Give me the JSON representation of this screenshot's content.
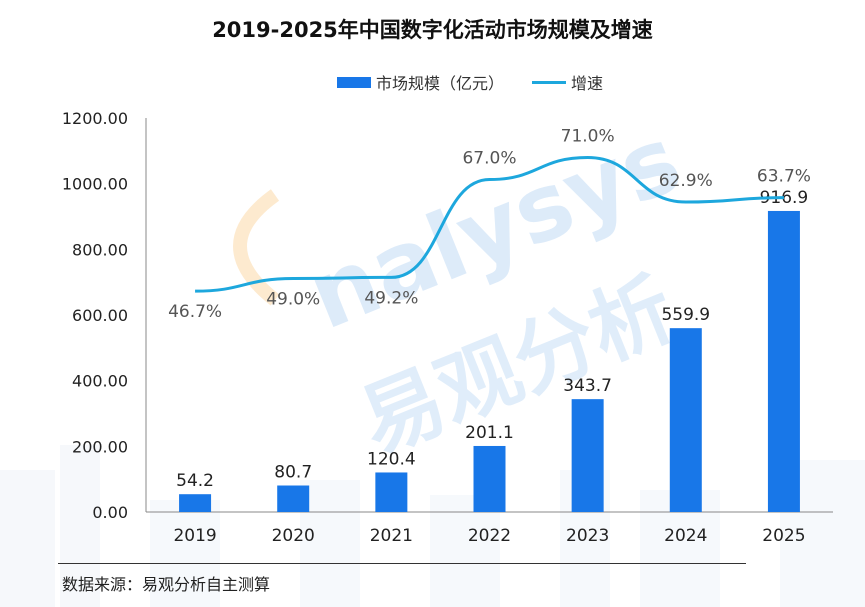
{
  "chart_data": {
    "type": "bar",
    "title": "2019-2025年中国数字化活动市场规模及增速",
    "categories": [
      "2019",
      "2020",
      "2021",
      "2022",
      "2023",
      "2024",
      "2025"
    ],
    "series": [
      {
        "name": "市场规模（亿元）",
        "type": "bar",
        "values": [
          54.2,
          80.7,
          120.4,
          201.1,
          343.7,
          559.9,
          916.9
        ],
        "labels": [
          "54.2",
          "80.7",
          "120.4",
          "201.1",
          "343.7",
          "559.9",
          "916.9"
        ]
      },
      {
        "name": "增速",
        "type": "line",
        "values": [
          46.7,
          49.0,
          49.2,
          67.0,
          71.0,
          62.9,
          63.7
        ],
        "labels": [
          "46.7%",
          "49.0%",
          "49.2%",
          "67.0%",
          "71.0%",
          "62.9%",
          "63.7%"
        ]
      }
    ],
    "y_axis": {
      "ylim": [
        0,
        1200
      ],
      "ticks": [
        "0.00",
        "200.00",
        "400.00",
        "600.00",
        "800.00",
        "1000.00",
        "1200.00"
      ]
    },
    "legend_position": "top",
    "grid": false,
    "colors": {
      "bar": "#1877e8",
      "line": "#1da7dd"
    }
  },
  "source_text": "数据来源：易观分析自主测算",
  "watermark": {
    "latin": "nalysys",
    "cjk": "易观分析"
  }
}
